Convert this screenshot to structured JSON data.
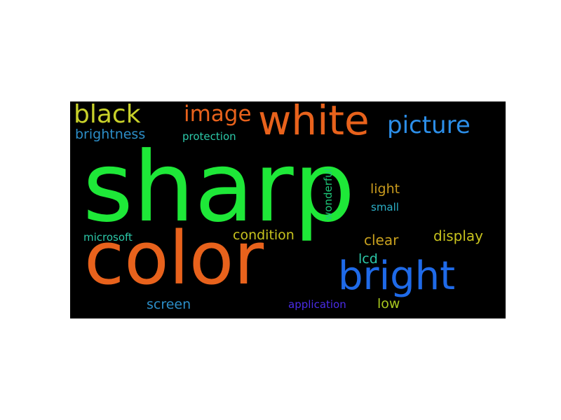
{
  "wordcloud": {
    "words": [
      {
        "text": "sharp",
        "color": "#1ee838"
      },
      {
        "text": "color",
        "color": "#e8621c"
      },
      {
        "text": "white",
        "color": "#e8621c"
      },
      {
        "text": "bright",
        "color": "#1f6ae8"
      },
      {
        "text": "black",
        "color": "#c8d12a"
      },
      {
        "text": "image",
        "color": "#e8621c"
      },
      {
        "text": "picture",
        "color": "#2c8ee8"
      },
      {
        "text": "brightness",
        "color": "#2c8ec8"
      },
      {
        "text": "protection",
        "color": "#2cc8a8"
      },
      {
        "text": "wonderful",
        "color": "#1ec878"
      },
      {
        "text": "light",
        "color": "#c89a1e"
      },
      {
        "text": "small",
        "color": "#2cb0c8"
      },
      {
        "text": "microsoft",
        "color": "#2cc8a8"
      },
      {
        "text": "condition",
        "color": "#c8c31e"
      },
      {
        "text": "clear",
        "color": "#c8a01e"
      },
      {
        "text": "display",
        "color": "#c8c31e"
      },
      {
        "text": "lcd",
        "color": "#2cc8a8"
      },
      {
        "text": "screen",
        "color": "#2c8ec8"
      },
      {
        "text": "application",
        "color": "#4a2ce8"
      },
      {
        "text": "low",
        "color": "#a8c81e"
      }
    ]
  }
}
